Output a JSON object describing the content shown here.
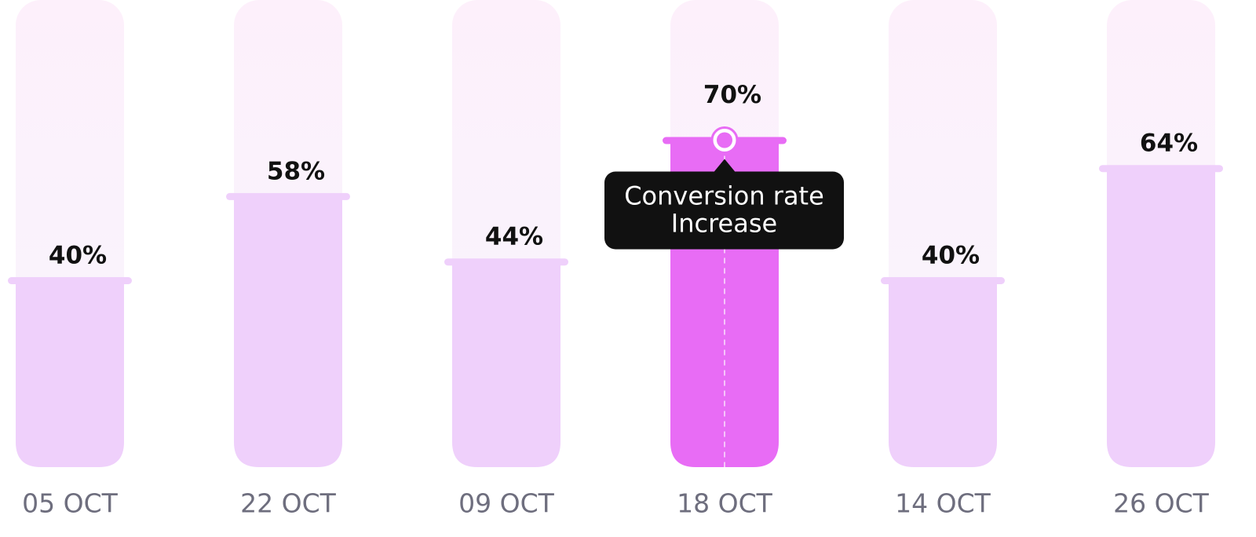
{
  "chart_data": {
    "type": "bar",
    "categories": [
      "05 OCT",
      "22 OCT",
      "09 OCT",
      "18 OCT",
      "14 OCT",
      "26 OCT"
    ],
    "values": [
      40,
      58,
      44,
      70,
      40,
      64
    ],
    "value_labels": [
      "40%",
      "58%",
      "44%",
      "70%",
      "40%",
      "64%"
    ],
    "colors": [
      "#efd0fb",
      "#efd0fb",
      "#efd0fb",
      "#e86cf5",
      "#efd0fb",
      "#efd0fb"
    ],
    "annotations": [
      null,
      null,
      null,
      [
        "Conversion rate",
        "Increase"
      ],
      null,
      null
    ],
    "ylim": [
      0,
      100
    ]
  }
}
